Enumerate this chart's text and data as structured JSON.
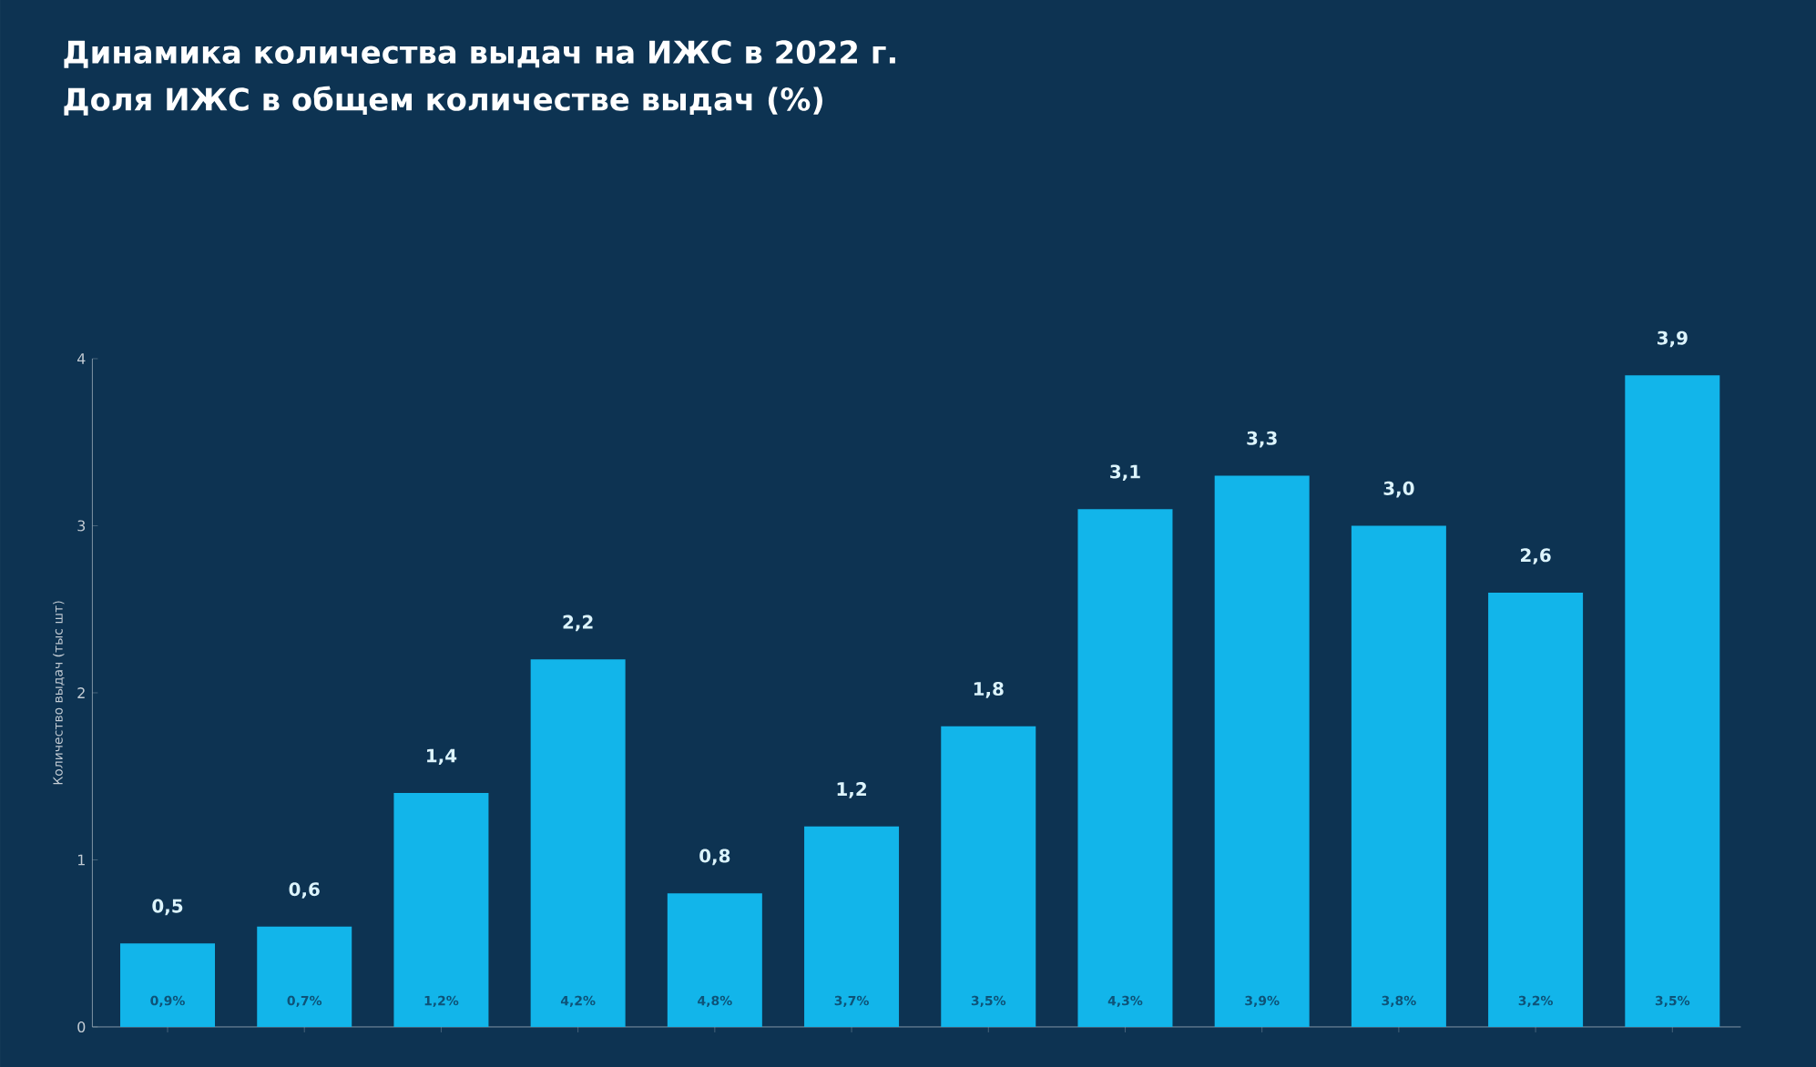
{
  "chart_data": {
    "type": "bar",
    "title": "Динамика количества выдач на ИЖС в 2022 г.\nДоля ИЖС в общем количестве выдач (%)",
    "ylabel": "Количество выдач (тыс шт)",
    "categories": [
      null,
      null,
      null,
      null,
      null,
      null,
      null,
      null,
      null,
      null,
      null,
      null
    ],
    "values": [
      0.5,
      0.6,
      1.4,
      2.2,
      0.8,
      1.2,
      1.8,
      3.1,
      3.3,
      3.0,
      2.6,
      3.9
    ],
    "value_labels": [
      "0,5",
      "0,6",
      "1,4",
      "2,2",
      "0,8",
      "1,2",
      "1,8",
      "3,1",
      "3,3",
      "3,0",
      "2,6",
      "3,9"
    ],
    "annotations": [
      "0,9%",
      "0,7%",
      "1,2%",
      "4,2%",
      "4,8%",
      "3,7%",
      "3,5%",
      "4,3%",
      "3,9%",
      "3,8%",
      "3,2%",
      "3,5%"
    ],
    "color": "#12b5ea",
    "ylim": [
      0,
      4
    ],
    "yticks": [
      0,
      1,
      2,
      3,
      4
    ]
  }
}
